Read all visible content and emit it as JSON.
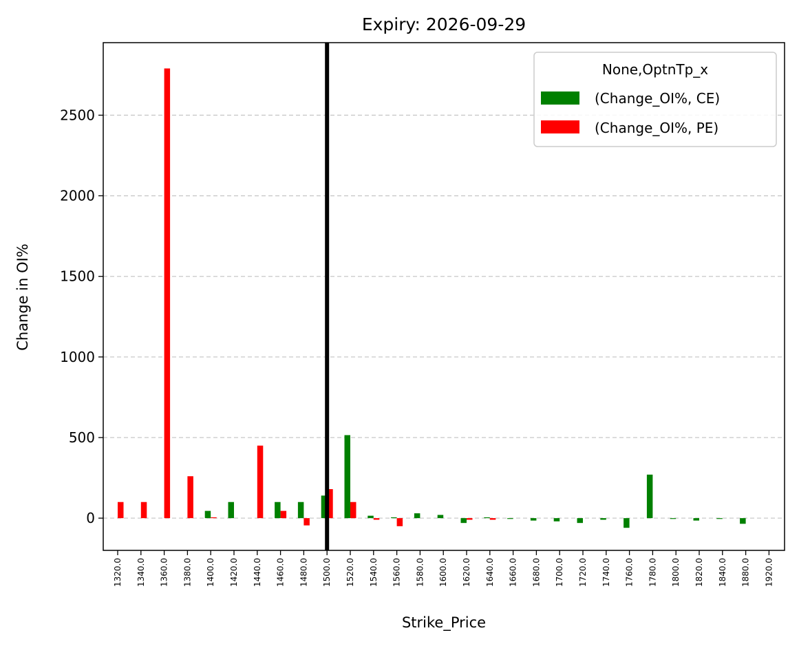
{
  "chart_data": {
    "type": "bar",
    "title": "Expiry: 2026-09-29",
    "xlabel": "Strike_Price",
    "ylabel": "Change in OI%",
    "categories": [
      "1320.0",
      "1340.0",
      "1360.0",
      "1380.0",
      "1400.0",
      "1420.0",
      "1440.0",
      "1460.0",
      "1480.0",
      "1500.0",
      "1520.0",
      "1540.0",
      "1560.0",
      "1580.0",
      "1600.0",
      "1620.0",
      "1640.0",
      "1660.0",
      "1680.0",
      "1700.0",
      "1720.0",
      "1740.0",
      "1760.0",
      "1780.0",
      "1800.0",
      "1820.0",
      "1840.0",
      "1880.0",
      "1920.0"
    ],
    "series": [
      {
        "name": "(Change_OI%, CE)",
        "color": "#008000",
        "values": [
          0,
          0,
          0,
          0,
          45,
          100,
          0,
          100,
          100,
          140,
          515,
          15,
          5,
          30,
          20,
          -30,
          5,
          -5,
          -15,
          -20,
          -30,
          -10,
          -60,
          270,
          -5,
          -15,
          -5,
          -35,
          0
        ]
      },
      {
        "name": "(Change_OI%, PE)",
        "color": "#ff0000",
        "values": [
          100,
          100,
          2790,
          260,
          5,
          0,
          450,
          45,
          -45,
          180,
          100,
          -10,
          -50,
          0,
          0,
          -10,
          -10,
          0,
          0,
          0,
          0,
          0,
          0,
          0,
          0,
          0,
          0,
          0,
          0
        ]
      }
    ],
    "ylim": [
      -200,
      2950
    ],
    "yticks": [
      0,
      500,
      1000,
      1500,
      2000,
      2500
    ],
    "grid": "y dashed",
    "legend": {
      "title": "None,OptnTp_x",
      "position": "top-right"
    },
    "reference_line": {
      "category": "1500.0",
      "color": "#000000"
    }
  }
}
